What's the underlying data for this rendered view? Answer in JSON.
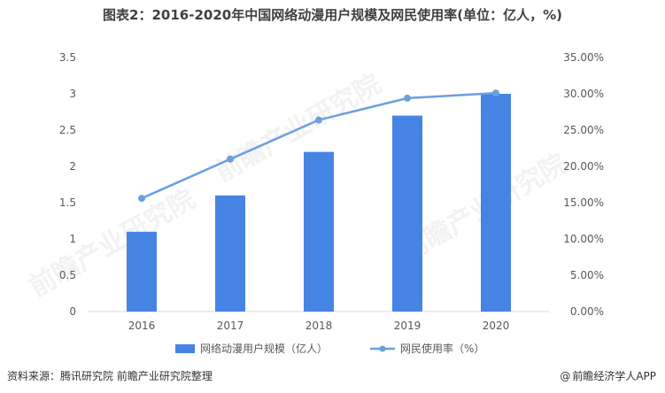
{
  "title": "图表2：2016-2020年中国网络动漫用户规模及网民使用率(单位：亿人，%)",
  "source": "资料来源：腾讯研究院 前瞻产业研究院整理",
  "brand": {
    "symbol": "@",
    "text": "前瞻经济学人APP"
  },
  "watermark": "前瞻产业研究院",
  "colors": {
    "bar": "#4684e3",
    "line": "#6a9fe0",
    "axis": "#d9d9d9"
  },
  "chart_data": {
    "type": "bar+line",
    "categories": [
      "2016",
      "2017",
      "2018",
      "2019",
      "2020"
    ],
    "series": [
      {
        "name": "网络动漫用户规模（亿人）",
        "type": "bar",
        "axis": "left",
        "values": [
          1.1,
          1.6,
          2.2,
          2.7,
          3.0
        ]
      },
      {
        "name": "网民使用率（%）",
        "type": "line",
        "axis": "right",
        "values": [
          15.6,
          21.0,
          26.4,
          29.4,
          30.1
        ]
      }
    ],
    "y_left": {
      "ylim": [
        0,
        3.5
      ],
      "ticks": [
        "0",
        "0.5",
        "1",
        "1.5",
        "2",
        "2.5",
        "3",
        "3.5"
      ]
    },
    "y_right": {
      "ylim": [
        0,
        35
      ],
      "ticks": [
        "0.00%",
        "5.00%",
        "10.00%",
        "15.00%",
        "20.00%",
        "25.00%",
        "30.00%",
        "35.00%"
      ]
    },
    "grid": false,
    "legend_position": "bottom"
  }
}
